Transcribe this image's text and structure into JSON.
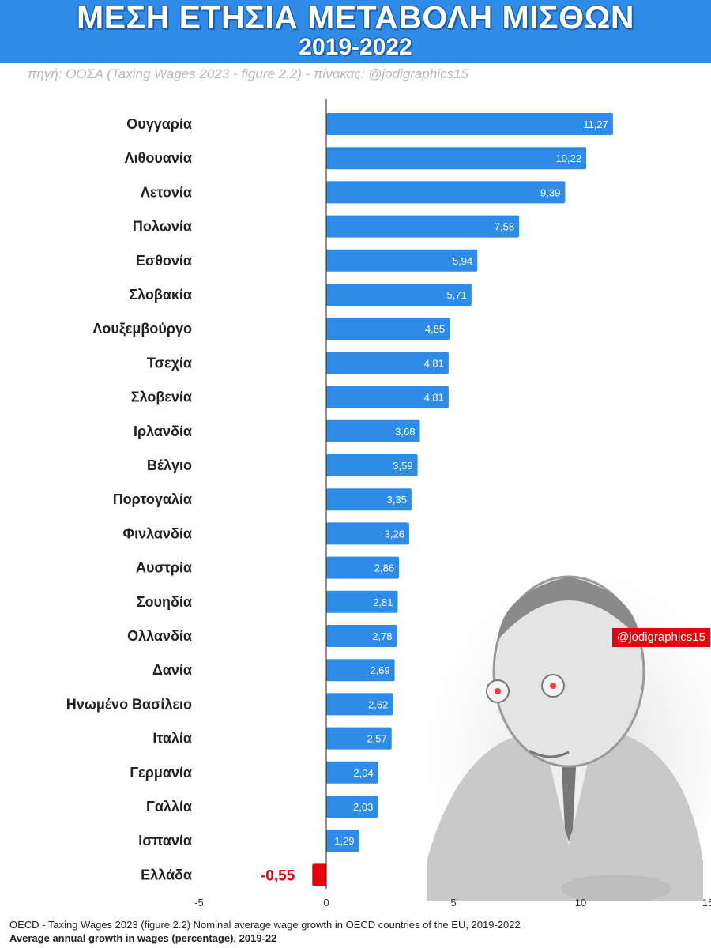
{
  "header": {
    "title": "ΜΕΣΗ ΕΤΗΣΙΑ ΜΕΤΑΒΟΛΗ ΜΙΣΘΩΝ",
    "subtitle": "2019-2022",
    "source": "πηγή: ΟΟΣΑ (Taxing Wages 2023 - figure 2.2) - πίνακας: @jodigraphics15"
  },
  "watermark": "@jodigraphics15",
  "footer": {
    "line1": "OECD - Taxing Wages 2023 (figure 2.2) Nominal average wage growth in OECD countries of the EU, 2019-2022",
    "line2": "Average annual growth in wages (percentage), 2019-22"
  },
  "colors": {
    "bar": "#2f8be8",
    "negative": "#e8000b",
    "header": "#2f8be8"
  },
  "chart_data": {
    "type": "bar",
    "orientation": "horizontal",
    "categories": [
      "Ουγγαρία",
      "Λιθουανία",
      "Λετονία",
      "Πολωνία",
      "Εσθονία",
      "Σλοβακία",
      "Λουξεμβούργο",
      "Τσεχία",
      "Σλοβενία",
      "Ιρλανδία",
      "Βέλγιο",
      "Πορτογαλία",
      "Φινλανδία",
      "Αυστρία",
      "Σουηδία",
      "Ολλανδία",
      "Δανία",
      "Ηνωμένο Βασίλειο",
      "Ιταλία",
      "Γερμανία",
      "Γαλλία",
      "Ισπανία",
      "Ελλάδα"
    ],
    "values": [
      11.27,
      10.22,
      9.39,
      7.58,
      5.94,
      5.71,
      4.85,
      4.81,
      4.81,
      3.68,
      3.59,
      3.35,
      3.26,
      2.86,
      2.81,
      2.78,
      2.69,
      2.62,
      2.57,
      2.04,
      2.03,
      1.29,
      -0.55
    ],
    "value_labels": [
      "11,27",
      "10,22",
      "9,39",
      "7,58",
      "5,94",
      "5,71",
      "4,85",
      "4,81",
      "4,81",
      "3,68",
      "3,59",
      "3,35",
      "3,26",
      "2,86",
      "2,81",
      "2,78",
      "2,69",
      "2,62",
      "2,57",
      "2,04",
      "2,03",
      "1,29",
      "-0,55"
    ],
    "xlim": [
      -5,
      15
    ],
    "xticks": [
      "-5",
      "0",
      "5",
      "10",
      "15"
    ],
    "xtick_values": [
      -5,
      0,
      5,
      10,
      15
    ],
    "title": "ΜΕΣΗ ΕΤΗΣΙΑ ΜΕΤΑΒΟΛΗ ΜΙΣΘΩΝ",
    "xlabel": "",
    "ylabel": "",
    "grid": false
  }
}
